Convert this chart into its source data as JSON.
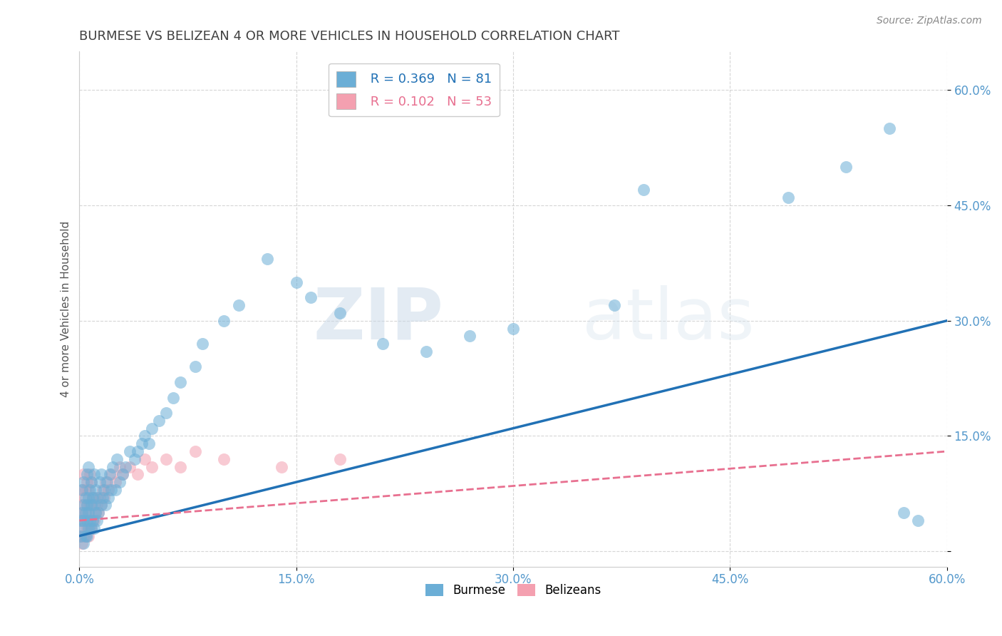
{
  "title": "BURMESE VS BELIZEAN 4 OR MORE VEHICLES IN HOUSEHOLD CORRELATION CHART",
  "source_text": "Source: ZipAtlas.com",
  "ylabel": "4 or more Vehicles in Household",
  "xlim": [
    0.0,
    0.6
  ],
  "ylim": [
    -0.02,
    0.65
  ],
  "xticks": [
    0.0,
    0.15,
    0.3,
    0.45,
    0.6
  ],
  "xtick_labels": [
    "0.0%",
    "15.0%",
    "30.0%",
    "45.0%",
    "60.0%"
  ],
  "yticks": [
    0.0,
    0.15,
    0.3,
    0.45,
    0.6
  ],
  "ytick_labels": [
    "",
    "15.0%",
    "30.0%",
    "45.0%",
    "60.0%"
  ],
  "burmese_R": 0.369,
  "burmese_N": 81,
  "belizean_R": 0.102,
  "belizean_N": 53,
  "burmese_color": "#6BAED6",
  "belizean_color": "#F4A0B0",
  "burmese_line_color": "#2171B5",
  "belizean_line_color": "#E87090",
  "watermark_zip": "ZIP",
  "watermark_atlas": "atlas",
  "background_color": "#ffffff",
  "grid_color": "#cccccc",
  "title_color": "#404040",
  "axis_label_color": "#555555",
  "tick_label_color": "#5599CC",
  "burmese_x": [
    0.001,
    0.001,
    0.002,
    0.002,
    0.002,
    0.003,
    0.003,
    0.003,
    0.003,
    0.004,
    0.004,
    0.004,
    0.005,
    0.005,
    0.005,
    0.005,
    0.006,
    0.006,
    0.006,
    0.006,
    0.007,
    0.007,
    0.008,
    0.008,
    0.008,
    0.009,
    0.009,
    0.01,
    0.01,
    0.01,
    0.011,
    0.011,
    0.012,
    0.012,
    0.013,
    0.014,
    0.015,
    0.015,
    0.016,
    0.017,
    0.018,
    0.019,
    0.02,
    0.021,
    0.022,
    0.023,
    0.025,
    0.026,
    0.028,
    0.03,
    0.032,
    0.035,
    0.038,
    0.04,
    0.043,
    0.045,
    0.048,
    0.05,
    0.055,
    0.06,
    0.065,
    0.07,
    0.08,
    0.085,
    0.1,
    0.11,
    0.13,
    0.15,
    0.16,
    0.18,
    0.21,
    0.24,
    0.27,
    0.3,
    0.37,
    0.39,
    0.49,
    0.53,
    0.56,
    0.57,
    0.58
  ],
  "burmese_y": [
    0.02,
    0.04,
    0.03,
    0.05,
    0.08,
    0.01,
    0.04,
    0.06,
    0.09,
    0.02,
    0.05,
    0.07,
    0.02,
    0.04,
    0.06,
    0.1,
    0.03,
    0.05,
    0.07,
    0.11,
    0.04,
    0.08,
    0.03,
    0.06,
    0.09,
    0.04,
    0.07,
    0.03,
    0.06,
    0.1,
    0.05,
    0.08,
    0.04,
    0.07,
    0.05,
    0.09,
    0.06,
    0.1,
    0.07,
    0.08,
    0.06,
    0.09,
    0.07,
    0.1,
    0.08,
    0.11,
    0.08,
    0.12,
    0.09,
    0.1,
    0.11,
    0.13,
    0.12,
    0.13,
    0.14,
    0.15,
    0.14,
    0.16,
    0.17,
    0.18,
    0.2,
    0.22,
    0.24,
    0.27,
    0.3,
    0.32,
    0.38,
    0.35,
    0.33,
    0.31,
    0.27,
    0.26,
    0.28,
    0.29,
    0.32,
    0.47,
    0.46,
    0.5,
    0.55,
    0.05,
    0.04
  ],
  "belizean_x": [
    0.001,
    0.001,
    0.001,
    0.002,
    0.002,
    0.002,
    0.002,
    0.003,
    0.003,
    0.003,
    0.003,
    0.004,
    0.004,
    0.004,
    0.005,
    0.005,
    0.005,
    0.006,
    0.006,
    0.006,
    0.007,
    0.007,
    0.007,
    0.008,
    0.008,
    0.008,
    0.009,
    0.009,
    0.01,
    0.01,
    0.011,
    0.012,
    0.013,
    0.014,
    0.015,
    0.016,
    0.017,
    0.018,
    0.02,
    0.022,
    0.025,
    0.028,
    0.03,
    0.035,
    0.04,
    0.045,
    0.05,
    0.06,
    0.07,
    0.08,
    0.1,
    0.14,
    0.18
  ],
  "belizean_y": [
    0.02,
    0.04,
    0.06,
    0.01,
    0.03,
    0.05,
    0.08,
    0.02,
    0.04,
    0.07,
    0.1,
    0.02,
    0.05,
    0.08,
    0.03,
    0.06,
    0.09,
    0.02,
    0.05,
    0.08,
    0.03,
    0.06,
    0.1,
    0.03,
    0.06,
    0.09,
    0.04,
    0.07,
    0.04,
    0.07,
    0.05,
    0.06,
    0.05,
    0.07,
    0.06,
    0.08,
    0.07,
    0.09,
    0.08,
    0.1,
    0.09,
    0.11,
    0.1,
    0.11,
    0.1,
    0.12,
    0.11,
    0.12,
    0.11,
    0.13,
    0.12,
    0.11,
    0.12
  ],
  "blue_line_x": [
    0.0,
    0.6
  ],
  "blue_line_y": [
    0.02,
    0.3
  ],
  "pink_line_x": [
    0.0,
    0.6
  ],
  "pink_line_y": [
    0.04,
    0.13
  ]
}
